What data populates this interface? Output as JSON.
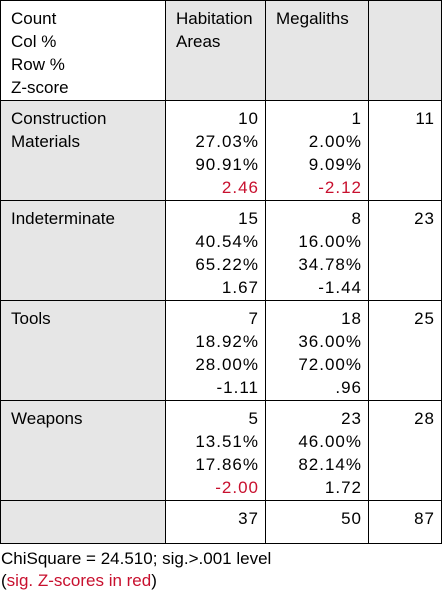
{
  "table": {
    "corner": [
      "Count",
      "Col %",
      "Row %",
      "Z-score"
    ],
    "columns": [
      [
        "Habitation",
        "Areas"
      ],
      [
        "Megaliths"
      ]
    ],
    "rows": [
      {
        "label": [
          "Construction",
          "Materials"
        ],
        "cells": [
          [
            "10",
            "27.03%",
            "90.91%",
            "2.46"
          ],
          [
            "1",
            "2.00%",
            "9.09%",
            "-2.12"
          ]
        ],
        "total": "11",
        "red": [
          true,
          true
        ]
      },
      {
        "label": [
          "Indeterminate"
        ],
        "cells": [
          [
            "15",
            "40.54%",
            "65.22%",
            "1.67"
          ],
          [
            "8",
            "16.00%",
            "34.78%",
            "-1.44"
          ]
        ],
        "total": "23",
        "red": [
          false,
          false
        ]
      },
      {
        "label": [
          "Tools"
        ],
        "cells": [
          [
            "7",
            "18.92%",
            "28.00%",
            "-1.11"
          ],
          [
            "18",
            "36.00%",
            "72.00%",
            ".96"
          ]
        ],
        "total": "25",
        "red": [
          false,
          false
        ]
      },
      {
        "label": [
          "Weapons"
        ],
        "cells": [
          [
            "5",
            "13.51%",
            "17.86%",
            "-2.00"
          ],
          [
            "23",
            "46.00%",
            "82.14%",
            "1.72"
          ]
        ],
        "total": "28",
        "red": [
          true,
          false
        ]
      }
    ],
    "totals": [
      "37",
      "50",
      "87"
    ]
  },
  "footer": {
    "stat": "ChiSquare = 24.510; sig.>.001 level",
    "note_open": "(",
    "note": "sig. Z-scores in red",
    "note_close": ")"
  }
}
